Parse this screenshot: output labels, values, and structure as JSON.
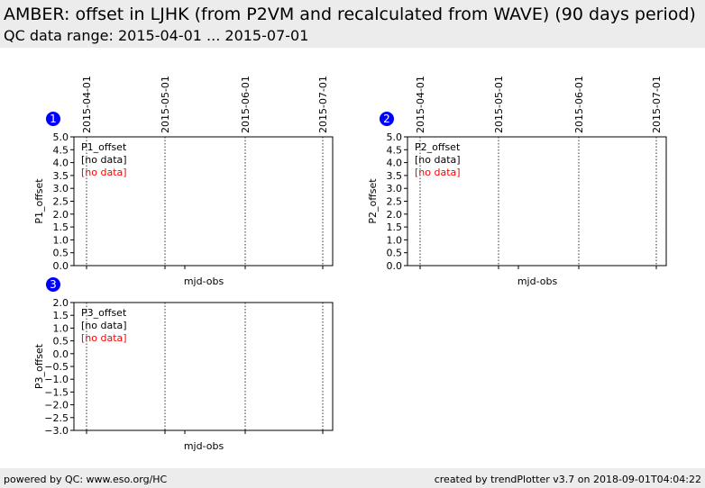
{
  "header": {
    "title": "AMBER: offset in LJHK (from P2VM and recalculated from WAVE) (90 days period)",
    "subtitle": "QC data range: 2015-04-01 ... 2015-07-01"
  },
  "footer": {
    "left": "powered by QC: www.eso.org/HC",
    "right": "created by trendPlotter v3.7 on 2018-09-01T04:04:22"
  },
  "colors": {
    "badge": "#0000ff",
    "no_data_red": "#ff0000",
    "header_bg": "#ececec"
  },
  "chart_data": [
    {
      "type": "scatter",
      "badge": "1",
      "title": "",
      "xlabel": "mjd-obs",
      "ylabel": "P1_offset",
      "ylim": [
        0.0,
        5.0
      ],
      "yticks": [
        "0.0",
        "0.5",
        "1.0",
        "1.5",
        "2.0",
        "2.5",
        "3.0",
        "3.5",
        "4.0",
        "4.5",
        "5.0"
      ],
      "date_lines": [
        "2015-04-01",
        "2015-05-01",
        "2015-06-01",
        "2015-07-01"
      ],
      "legend": [
        "P1_offset",
        "[no data]",
        "[no data]"
      ],
      "series": []
    },
    {
      "type": "scatter",
      "badge": "2",
      "title": "",
      "xlabel": "mjd-obs",
      "ylabel": "P2_offset",
      "ylim": [
        0.0,
        5.0
      ],
      "yticks": [
        "0.0",
        "0.5",
        "1.0",
        "1.5",
        "2.0",
        "2.5",
        "3.0",
        "3.5",
        "4.0",
        "4.5",
        "5.0"
      ],
      "date_lines": [
        "2015-04-01",
        "2015-05-01",
        "2015-06-01",
        "2015-07-01"
      ],
      "legend": [
        "P2_offset",
        "[no data]",
        "[no data]"
      ],
      "series": []
    },
    {
      "type": "scatter",
      "badge": "3",
      "title": "",
      "xlabel": "mjd-obs",
      "ylabel": "P3_offset",
      "ylim": [
        -3.0,
        2.0
      ],
      "yticks": [
        "−3.0",
        "−2.5",
        "−2.0",
        "−1.5",
        "−1.0",
        "−0.5",
        "0.0",
        "0.5",
        "1.0",
        "1.5",
        "2.0"
      ],
      "date_lines": [
        "2015-04-01",
        "2015-05-01",
        "2015-06-01",
        "2015-07-01"
      ],
      "legend": [
        "P3_offset",
        "[no data]",
        "[no data]"
      ],
      "series": []
    }
  ]
}
